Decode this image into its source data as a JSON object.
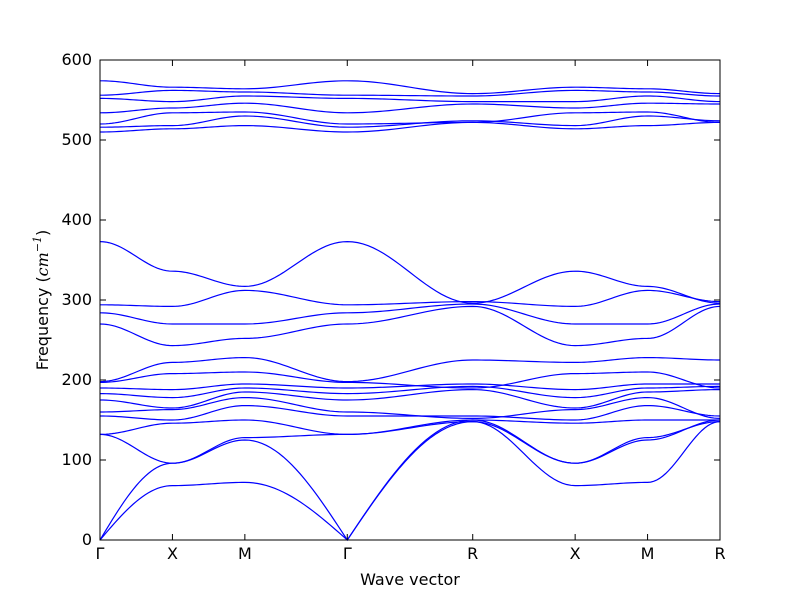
{
  "chart_data": {
    "type": "line",
    "title": "",
    "xlabel": "Wave vector",
    "ylabel": "Frequency (",
    "ylabel_math": "cm",
    "ylabel_exp": "−1",
    "ylabel_close": ")",
    "ylim": [
      0,
      600
    ],
    "yticks": [
      0,
      100,
      200,
      300,
      400,
      500,
      600
    ],
    "x_ticks": [
      {
        "label": "Γ",
        "x": 0
      },
      {
        "label": "X",
        "x": 0.5
      },
      {
        "label": "M",
        "x": 1.0
      },
      {
        "label": "Γ",
        "x": 1.707
      },
      {
        "label": "R",
        "x": 2.573
      },
      {
        "label": "X",
        "x": 3.28
      },
      {
        "label": "M",
        "x": 3.78
      },
      {
        "label": "R",
        "x": 4.28
      }
    ],
    "xlim": [
      0,
      4.28
    ],
    "grid": false,
    "line_color": "#0000ff",
    "series": [
      {
        "x": [
          0,
          0.5,
          1.0,
          1.707,
          2.573,
          3.28,
          3.78,
          4.28
        ],
        "values": [
          0,
          68,
          72,
          0,
          148,
          68,
          72,
          148
        ]
      },
      {
        "x": [
          0,
          0.5,
          1.0,
          1.707,
          2.573,
          3.28,
          3.78,
          4.28
        ],
        "values": [
          0,
          96,
          125,
          0,
          150,
          96,
          125,
          150
        ]
      },
      {
        "x": [
          0,
          0.5,
          1.0,
          1.707,
          2.573,
          3.28,
          3.78,
          4.28
        ],
        "values": [
          132,
          96,
          128,
          132,
          148,
          96,
          128,
          148
        ]
      },
      {
        "x": [
          0,
          0.5,
          1.0,
          1.707,
          2.573,
          3.28,
          3.78,
          4.28
        ],
        "values": [
          132,
          146,
          150,
          132,
          150,
          146,
          150,
          150
        ]
      },
      {
        "x": [
          0,
          0.5,
          1.0,
          1.707,
          2.573,
          3.28,
          3.78,
          4.28
        ],
        "values": [
          155,
          150,
          168,
          155,
          155,
          150,
          168,
          155
        ]
      },
      {
        "x": [
          0,
          0.5,
          1.0,
          1.707,
          2.573,
          3.28,
          3.78,
          4.28
        ],
        "values": [
          160,
          163,
          178,
          160,
          152,
          163,
          178,
          152
        ]
      },
      {
        "x": [
          0,
          0.5,
          1.0,
          1.707,
          2.573,
          3.28,
          3.78,
          4.28
        ],
        "values": [
          175,
          165,
          185,
          175,
          188,
          165,
          185,
          188
        ]
      },
      {
        "x": [
          0,
          0.5,
          1.0,
          1.707,
          2.573,
          3.28,
          3.78,
          4.28
        ],
        "values": [
          183,
          178,
          190,
          183,
          192,
          178,
          190,
          192
        ]
      },
      {
        "x": [
          0,
          0.5,
          1.0,
          1.707,
          2.573,
          3.28,
          3.78,
          4.28
        ],
        "values": [
          190,
          188,
          195,
          190,
          195,
          188,
          195,
          195
        ]
      },
      {
        "x": [
          0,
          0.5,
          1.0,
          1.707,
          2.573,
          3.28,
          3.78,
          4.28
        ],
        "values": [
          197,
          208,
          210,
          197,
          190,
          208,
          210,
          190
        ]
      },
      {
        "x": [
          0,
          0.5,
          1.0,
          1.707,
          2.573,
          3.28,
          3.78,
          4.28
        ],
        "values": [
          198,
          222,
          228,
          198,
          225,
          222,
          228,
          225
        ]
      },
      {
        "x": [
          0,
          0.5,
          1.0,
          1.707,
          2.573,
          3.28,
          3.78,
          4.28
        ],
        "values": [
          270,
          243,
          252,
          270,
          292,
          243,
          252,
          292
        ]
      },
      {
        "x": [
          0,
          0.5,
          1.0,
          1.707,
          2.573,
          3.28,
          3.78,
          4.28
        ],
        "values": [
          284,
          270,
          270,
          284,
          295,
          270,
          270,
          295
        ]
      },
      {
        "x": [
          0,
          0.5,
          1.0,
          1.707,
          2.573,
          3.28,
          3.78,
          4.28
        ],
        "values": [
          294,
          292,
          312,
          294,
          298,
          292,
          312,
          298
        ]
      },
      {
        "x": [
          0,
          0.5,
          1.0,
          1.707,
          2.573,
          3.28,
          3.78,
          4.28
        ],
        "values": [
          373,
          336,
          317,
          373,
          296,
          336,
          317,
          296
        ]
      },
      {
        "x": [
          0,
          0.5,
          1.0,
          1.707,
          2.573,
          3.28,
          3.78,
          4.28
        ],
        "values": [
          510,
          514,
          518,
          510,
          522,
          514,
          518,
          522
        ]
      },
      {
        "x": [
          0,
          0.5,
          1.0,
          1.707,
          2.573,
          3.28,
          3.78,
          4.28
        ],
        "values": [
          516,
          518,
          530,
          516,
          524,
          518,
          530,
          524
        ]
      },
      {
        "x": [
          0,
          0.5,
          1.0,
          1.707,
          2.573,
          3.28,
          3.78,
          4.28
        ],
        "values": [
          520,
          534,
          535,
          520,
          522,
          534,
          535,
          522
        ]
      },
      {
        "x": [
          0,
          0.5,
          1.0,
          1.707,
          2.573,
          3.28,
          3.78,
          4.28
        ],
        "values": [
          534,
          540,
          546,
          534,
          545,
          540,
          546,
          545
        ]
      },
      {
        "x": [
          0,
          0.5,
          1.0,
          1.707,
          2.573,
          3.28,
          3.78,
          4.28
        ],
        "values": [
          552,
          548,
          555,
          552,
          548,
          548,
          555,
          548
        ]
      },
      {
        "x": [
          0,
          0.5,
          1.0,
          1.707,
          2.573,
          3.28,
          3.78,
          4.28
        ],
        "values": [
          556,
          562,
          560,
          556,
          555,
          562,
          560,
          555
        ]
      },
      {
        "x": [
          0,
          0.5,
          1.0,
          1.707,
          2.573,
          3.28,
          3.78,
          4.28
        ],
        "values": [
          574,
          566,
          564,
          574,
          558,
          566,
          564,
          558
        ]
      }
    ]
  }
}
